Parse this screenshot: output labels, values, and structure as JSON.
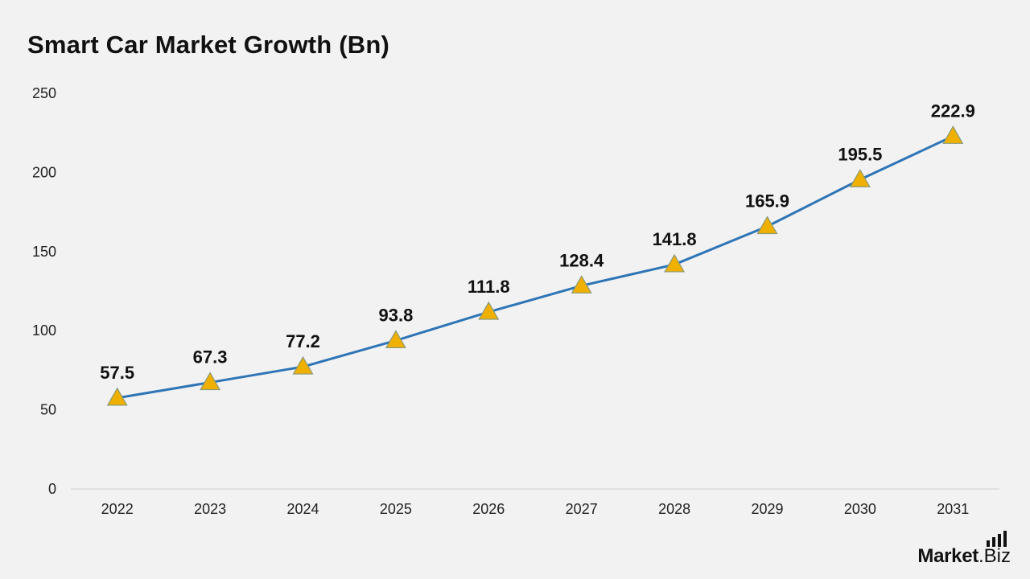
{
  "chart_data": {
    "type": "line",
    "title": "Smart Car Market Growth (Bn)",
    "xlabel": "",
    "ylabel": "",
    "categories": [
      "2022",
      "2023",
      "2024",
      "2025",
      "2026",
      "2027",
      "2028",
      "2029",
      "2030",
      "2031"
    ],
    "series": [
      {
        "values": [
          57.5,
          67.3,
          77.2,
          93.8,
          111.8,
          128.4,
          141.8,
          165.9,
          195.5,
          222.9
        ]
      }
    ],
    "data_labels": [
      "57.5",
      "67.3",
      "77.2",
      "93.8",
      "111.8",
      "128.4",
      "141.8",
      "165.9",
      "195.5",
      "222.9"
    ],
    "ylim": [
      0,
      250
    ],
    "yticks": [
      "0",
      "50",
      "100",
      "150",
      "200",
      "250"
    ],
    "grid": false,
    "legend": "none",
    "marker": "triangle",
    "colors": {
      "line": "#2e75b6",
      "marker_fill": "#f0b000",
      "marker_stroke": "#8a9a7a",
      "axis": "#d0d0d0"
    }
  },
  "branding": {
    "name_bold": "Market",
    "name_light": ".Biz",
    "icon": "bar-signal-icon"
  }
}
